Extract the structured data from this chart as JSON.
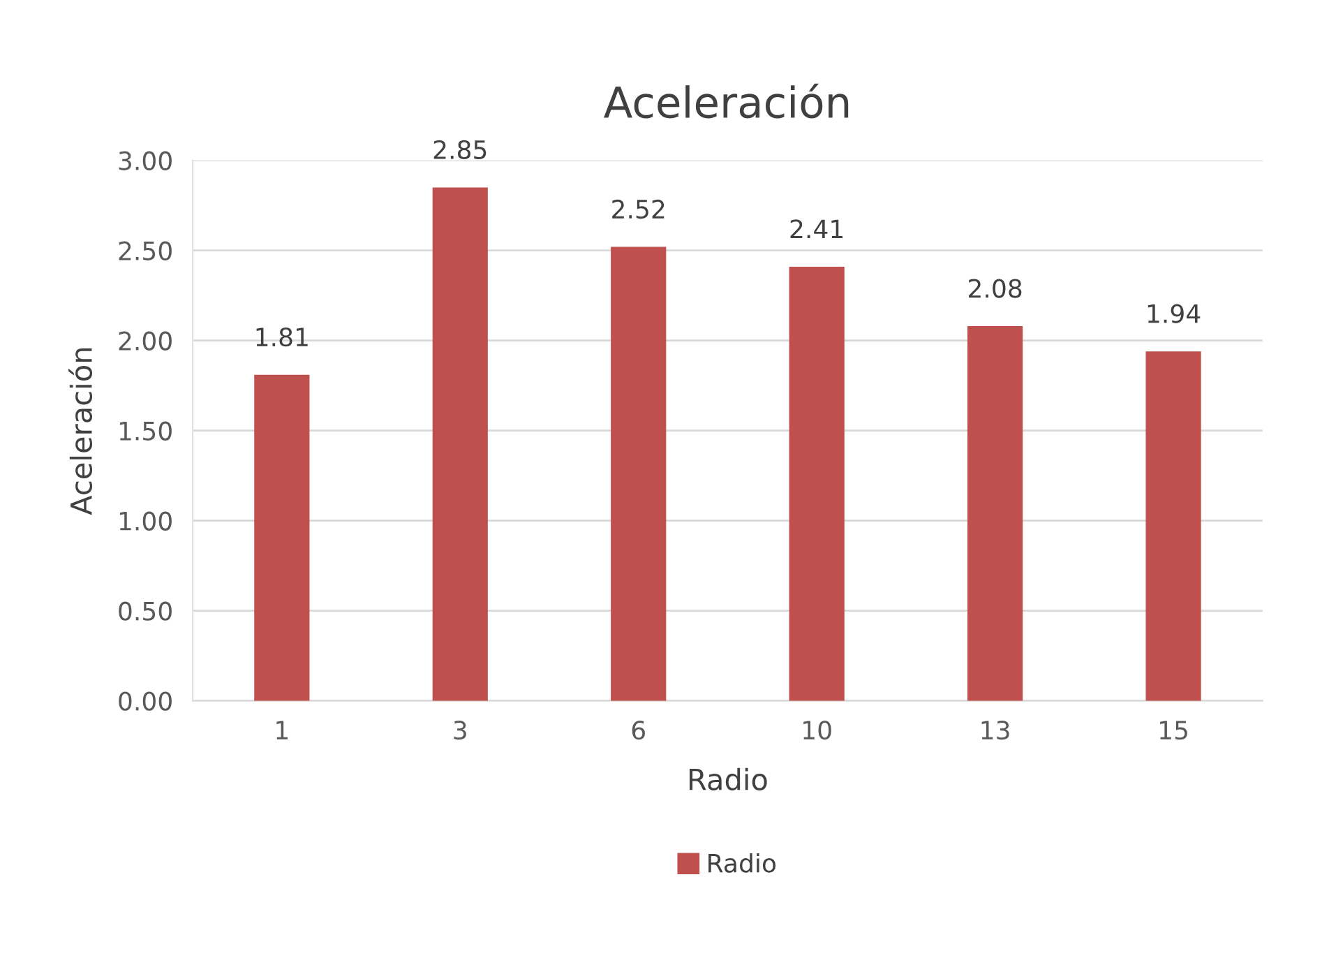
{
  "chart_data": {
    "type": "bar",
    "title": "Aceleración",
    "xlabel": "Radio",
    "ylabel": "Aceleración",
    "categories": [
      "1",
      "3",
      "6",
      "10",
      "13",
      "15"
    ],
    "series": [
      {
        "name": "Radio",
        "color": "#c0504d",
        "values": [
          1.81,
          2.85,
          2.52,
          2.41,
          2.08,
          1.94
        ]
      }
    ],
    "ylim": [
      0,
      3
    ],
    "yticks": [
      {
        "value": 0,
        "label": "0.00"
      },
      {
        "value": 0.5,
        "label": "0.50"
      },
      {
        "value": 1,
        "label": "1.00"
      },
      {
        "value": 1.5,
        "label": "1.50"
      },
      {
        "value": 2,
        "label": "2.00"
      },
      {
        "value": 2.5,
        "label": "2.50"
      },
      {
        "value": 3,
        "label": "3.00"
      }
    ],
    "grid": "y",
    "legend": "bottom",
    "data_labels": true
  }
}
